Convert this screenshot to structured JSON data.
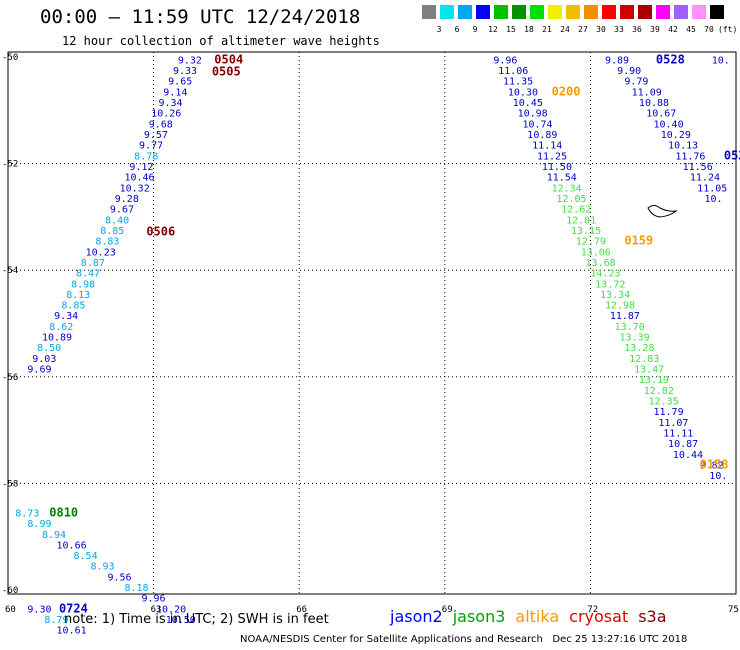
{
  "header": {
    "title": "00:00 – 11:59 UTC 12/24/2018",
    "subtitle": "12 hour collection of altimeter wave heights"
  },
  "legend": {
    "unit": "(ft)",
    "bins": [
      {
        "label": "3",
        "color": "#7f7f7f"
      },
      {
        "label": "6",
        "color": "#00e8e8"
      },
      {
        "label": "9",
        "color": "#00a8f0"
      },
      {
        "label": "12",
        "color": "#0000ff"
      },
      {
        "label": "15",
        "color": "#00c000"
      },
      {
        "label": "18",
        "color": "#009000"
      },
      {
        "label": "21",
        "color": "#00e000"
      },
      {
        "label": "24",
        "color": "#f0f000"
      },
      {
        "label": "27",
        "color": "#f0c000"
      },
      {
        "label": "30",
        "color": "#f09000"
      },
      {
        "label": "33",
        "color": "#ff0000"
      },
      {
        "label": "36",
        "color": "#d00000"
      },
      {
        "label": "39",
        "color": "#a80000"
      },
      {
        "label": "42",
        "color": "#ff00ff"
      },
      {
        "label": "45",
        "color": "#a060ff"
      },
      {
        "label": "70",
        "color": "#ff90ff"
      },
      {
        "label": "",
        "color": "#000000"
      }
    ]
  },
  "axes": {
    "lat_ticks": [
      "-50",
      "-52",
      "-54",
      "-56",
      "-58",
      "-60"
    ],
    "lon_ticks": [
      "60",
      "63",
      "66",
      "69",
      "72",
      "75"
    ]
  },
  "colors": {
    "blue": "#0000c8",
    "cyan": "#00a8e0",
    "green": "#40e040",
    "darkred": "#800000",
    "orange": "#ff9900",
    "darkgreen": "#008000",
    "grid": "#000000"
  },
  "values": [
    {
      "t": "9.32",
      "lon": 63.5,
      "lat": -50.12,
      "c": "blue"
    },
    {
      "t": "9.33",
      "lon": 63.4,
      "lat": -50.32,
      "c": "blue"
    },
    {
      "t": "9.65",
      "lon": 63.3,
      "lat": -50.52,
      "c": "blue"
    },
    {
      "t": "9.14",
      "lon": 63.2,
      "lat": -50.72,
      "c": "blue"
    },
    {
      "t": "9.34",
      "lon": 63.1,
      "lat": -50.92,
      "c": "blue"
    },
    {
      "t": "10.26",
      "lon": 62.95,
      "lat": -51.12,
      "c": "blue"
    },
    {
      "t": "9.68",
      "lon": 62.9,
      "lat": -51.32,
      "c": "blue"
    },
    {
      "t": "9.57",
      "lon": 62.8,
      "lat": -51.52,
      "c": "blue"
    },
    {
      "t": "9.77",
      "lon": 62.7,
      "lat": -51.72,
      "c": "blue"
    },
    {
      "t": "8.78",
      "lon": 62.6,
      "lat": -51.92,
      "c": "cyan"
    },
    {
      "t": "9.12",
      "lon": 62.5,
      "lat": -52.12,
      "c": "blue"
    },
    {
      "t": "10.46",
      "lon": 62.4,
      "lat": -52.32,
      "c": "blue"
    },
    {
      "t": "10.32",
      "lon": 62.3,
      "lat": -52.52,
      "c": "blue"
    },
    {
      "t": "9.28",
      "lon": 62.2,
      "lat": -52.72,
      "c": "blue"
    },
    {
      "t": "9.67",
      "lon": 62.1,
      "lat": -52.92,
      "c": "blue"
    },
    {
      "t": "8.40",
      "lon": 62.0,
      "lat": -53.12,
      "c": "cyan"
    },
    {
      "t": "8.85",
      "lon": 61.9,
      "lat": -53.32,
      "c": "cyan"
    },
    {
      "t": "8.83",
      "lon": 61.8,
      "lat": -53.52,
      "c": "cyan"
    },
    {
      "t": "10.23",
      "lon": 61.6,
      "lat": -53.72,
      "c": "blue"
    },
    {
      "t": "8.87",
      "lon": 61.5,
      "lat": -53.92,
      "c": "cyan"
    },
    {
      "t": "8.47",
      "lon": 61.4,
      "lat": -54.12,
      "c": "cyan"
    },
    {
      "t": "8.98",
      "lon": 61.3,
      "lat": -54.32,
      "c": "cyan"
    },
    {
      "t": "8.13",
      "lon": 61.2,
      "lat": -54.52,
      "c": "cyan"
    },
    {
      "t": "8.85",
      "lon": 61.1,
      "lat": -54.72,
      "c": "cyan"
    },
    {
      "t": "9.34",
      "lon": 60.95,
      "lat": -54.92,
      "c": "blue"
    },
    {
      "t": "8.62",
      "lon": 60.85,
      "lat": -55.12,
      "c": "cyan"
    },
    {
      "t": "10.89",
      "lon": 60.7,
      "lat": -55.32,
      "c": "blue"
    },
    {
      "t": "8.50",
      "lon": 60.6,
      "lat": -55.52,
      "c": "cyan"
    },
    {
      "t": "9.03",
      "lon": 60.5,
      "lat": -55.72,
      "c": "blue"
    },
    {
      "t": "9.69",
      "lon": 60.4,
      "lat": -55.92,
      "c": "blue"
    },
    {
      "t": "9.96",
      "lon": 70.0,
      "lat": -50.12,
      "c": "blue"
    },
    {
      "t": "11.06",
      "lon": 70.1,
      "lat": -50.32,
      "c": "blue"
    },
    {
      "t": "11.35",
      "lon": 70.2,
      "lat": -50.52,
      "c": "blue"
    },
    {
      "t": "10.30",
      "lon": 70.3,
      "lat": -50.72,
      "c": "blue"
    },
    {
      "t": "10.45",
      "lon": 70.4,
      "lat": -50.92,
      "c": "blue"
    },
    {
      "t": "10.98",
      "lon": 70.5,
      "lat": -51.12,
      "c": "blue"
    },
    {
      "t": "10.74",
      "lon": 70.6,
      "lat": -51.32,
      "c": "blue"
    },
    {
      "t": "10.89",
      "lon": 70.7,
      "lat": -51.52,
      "c": "blue"
    },
    {
      "t": "11.14",
      "lon": 70.8,
      "lat": -51.72,
      "c": "blue"
    },
    {
      "t": "11.25",
      "lon": 70.9,
      "lat": -51.92,
      "c": "blue"
    },
    {
      "t": "11.50",
      "lon": 71.0,
      "lat": -52.12,
      "c": "blue"
    },
    {
      "t": "11.54",
      "lon": 71.1,
      "lat": -52.32,
      "c": "blue"
    },
    {
      "t": "12.34",
      "lon": 71.2,
      "lat": -52.52,
      "c": "green"
    },
    {
      "t": "12.05",
      "lon": 71.3,
      "lat": -52.72,
      "c": "green"
    },
    {
      "t": "12.62",
      "lon": 71.4,
      "lat": -52.92,
      "c": "green"
    },
    {
      "t": "12.81",
      "lon": 71.5,
      "lat": -53.12,
      "c": "green"
    },
    {
      "t": "13.15",
      "lon": 71.6,
      "lat": -53.32,
      "c": "green"
    },
    {
      "t": "12.79",
      "lon": 71.7,
      "lat": -53.52,
      "c": "green"
    },
    {
      "t": "13.06",
      "lon": 71.8,
      "lat": -53.72,
      "c": "green"
    },
    {
      "t": "13.68",
      "lon": 71.9,
      "lat": -53.92,
      "c": "green"
    },
    {
      "t": "14.23",
      "lon": 72.0,
      "lat": -54.12,
      "c": "green"
    },
    {
      "t": "13.72",
      "lon": 72.1,
      "lat": -54.32,
      "c": "green"
    },
    {
      "t": "13.34",
      "lon": 72.2,
      "lat": -54.52,
      "c": "green"
    },
    {
      "t": "12.98",
      "lon": 72.3,
      "lat": -54.72,
      "c": "green"
    },
    {
      "t": "11.87",
      "lon": 72.4,
      "lat": -54.92,
      "c": "blue"
    },
    {
      "t": "13.70",
      "lon": 72.5,
      "lat": -55.12,
      "c": "green"
    },
    {
      "t": "13.39",
      "lon": 72.6,
      "lat": -55.32,
      "c": "green"
    },
    {
      "t": "13.28",
      "lon": 72.7,
      "lat": -55.52,
      "c": "green"
    },
    {
      "t": "12.83",
      "lon": 72.8,
      "lat": -55.72,
      "c": "green"
    },
    {
      "t": "13.47",
      "lon": 72.9,
      "lat": -55.92,
      "c": "green"
    },
    {
      "t": "13.19",
      "lon": 73.0,
      "lat": -56.12,
      "c": "green"
    },
    {
      "t": "12.82",
      "lon": 73.1,
      "lat": -56.32,
      "c": "green"
    },
    {
      "t": "12.35",
      "lon": 73.2,
      "lat": -56.52,
      "c": "green"
    },
    {
      "t": "11.79",
      "lon": 73.3,
      "lat": -56.72,
      "c": "blue"
    },
    {
      "t": "11.07",
      "lon": 73.4,
      "lat": -56.92,
      "c": "blue"
    },
    {
      "t": "11.11",
      "lon": 73.5,
      "lat": -57.12,
      "c": "blue"
    },
    {
      "t": "10.87",
      "lon": 73.6,
      "lat": -57.32,
      "c": "blue"
    },
    {
      "t": "10.44",
      "lon": 73.7,
      "lat": -57.52,
      "c": "blue"
    },
    {
      "t": "9.82",
      "lon": 74.25,
      "lat": -57.72,
      "c": "blue"
    },
    {
      "t": "10.",
      "lon": 74.45,
      "lat": -57.92,
      "c": "blue"
    },
    {
      "t": "9.89",
      "lon": 72.3,
      "lat": -50.12,
      "c": "blue"
    },
    {
      "t": "9.90",
      "lon": 72.55,
      "lat": -50.32,
      "c": "blue"
    },
    {
      "t": "9.79",
      "lon": 72.7,
      "lat": -50.52,
      "c": "blue"
    },
    {
      "t": "11.09",
      "lon": 72.85,
      "lat": -50.72,
      "c": "blue"
    },
    {
      "t": "10.88",
      "lon": 73.0,
      "lat": -50.92,
      "c": "blue"
    },
    {
      "t": "10.67",
      "lon": 73.15,
      "lat": -51.12,
      "c": "blue"
    },
    {
      "t": "10.40",
      "lon": 73.3,
      "lat": -51.32,
      "c": "blue"
    },
    {
      "t": "10.29",
      "lon": 73.45,
      "lat": -51.52,
      "c": "blue"
    },
    {
      "t": "10.13",
      "lon": 73.6,
      "lat": -51.72,
      "c": "blue"
    },
    {
      "t": "11.76",
      "lon": 73.75,
      "lat": -51.92,
      "c": "blue"
    },
    {
      "t": "11.56",
      "lon": 73.9,
      "lat": -52.12,
      "c": "blue"
    },
    {
      "t": "11.24",
      "lon": 74.05,
      "lat": -52.32,
      "c": "blue"
    },
    {
      "t": "11.05",
      "lon": 74.2,
      "lat": -52.52,
      "c": "blue"
    },
    {
      "t": "10.",
      "lon": 74.35,
      "lat": -52.72,
      "c": "blue"
    },
    {
      "t": "10.",
      "lon": 74.5,
      "lat": -50.12,
      "c": "blue"
    },
    {
      "t": "8.73",
      "lon": 60.15,
      "lat": -58.62,
      "c": "cyan"
    },
    {
      "t": "8.99",
      "lon": 60.4,
      "lat": -58.82,
      "c": "cyan"
    },
    {
      "t": "8.94",
      "lon": 60.7,
      "lat": -59.02,
      "c": "cyan"
    },
    {
      "t": "10.66",
      "lon": 61.0,
      "lat": -59.22,
      "c": "blue"
    },
    {
      "t": "8.54",
      "lon": 61.35,
      "lat": -59.42,
      "c": "cyan"
    },
    {
      "t": "8.93",
      "lon": 61.7,
      "lat": -59.62,
      "c": "cyan"
    },
    {
      "t": "9.56",
      "lon": 62.05,
      "lat": -59.82,
      "c": "blue"
    },
    {
      "t": "8.18",
      "lon": 62.4,
      "lat": -60.02,
      "c": "cyan"
    },
    {
      "t": "9.96",
      "lon": 62.75,
      "lat": -60.22,
      "c": "blue"
    },
    {
      "t": "10.20",
      "lon": 63.05,
      "lat": -60.42,
      "c": "blue"
    },
    {
      "t": "10.50",
      "lon": 63.25,
      "lat": -60.62,
      "c": "blue"
    },
    {
      "t": "9.30",
      "lon": 60.4,
      "lat": -60.42,
      "c": "blue"
    },
    {
      "t": "8.79",
      "lon": 60.75,
      "lat": -60.62,
      "c": "cyan"
    },
    {
      "t": "10.61",
      "lon": 61.0,
      "lat": -60.82,
      "c": "blue"
    }
  ],
  "times": [
    {
      "t": "0504",
      "lon": 64.25,
      "lat": -50.12,
      "c": "darkred"
    },
    {
      "t": "0505",
      "lon": 64.2,
      "lat": -50.35,
      "c": "darkred"
    },
    {
      "t": "0506",
      "lon": 62.85,
      "lat": -53.35,
      "c": "darkred"
    },
    {
      "t": "0528",
      "lon": 73.35,
      "lat": -50.12,
      "c": "blue"
    },
    {
      "t": "0200",
      "lon": 71.2,
      "lat": -50.72,
      "c": "orange"
    },
    {
      "t": "0159",
      "lon": 72.7,
      "lat": -53.52,
      "c": "orange"
    },
    {
      "t": "0158",
      "lon": 74.25,
      "lat": -57.72,
      "c": "orange"
    },
    {
      "t": "052",
      "lon": 74.75,
      "lat": -51.92,
      "c": "blue"
    },
    {
      "t": "0810",
      "lon": 60.85,
      "lat": -58.62,
      "c": "darkgreen"
    },
    {
      "t": "0724",
      "lon": 61.05,
      "lat": -60.42,
      "c": "blue"
    }
  ],
  "footer": {
    "note": "note: 1) Time is in UTC; 2) SWH is in feet",
    "satellites": [
      {
        "name": "jason2",
        "color": "#0000ff"
      },
      {
        "name": "jason3",
        "color": "#00a000"
      },
      {
        "name": "altika",
        "color": "#ff9900"
      },
      {
        "name": "cryosat",
        "color": "#e00000"
      },
      {
        "name": "s3a",
        "color": "#800000"
      }
    ],
    "credit": "NOAA/NESDIS Center for Satellite Applications and Research   Dec 25 13:27:16 UTC 2018"
  }
}
